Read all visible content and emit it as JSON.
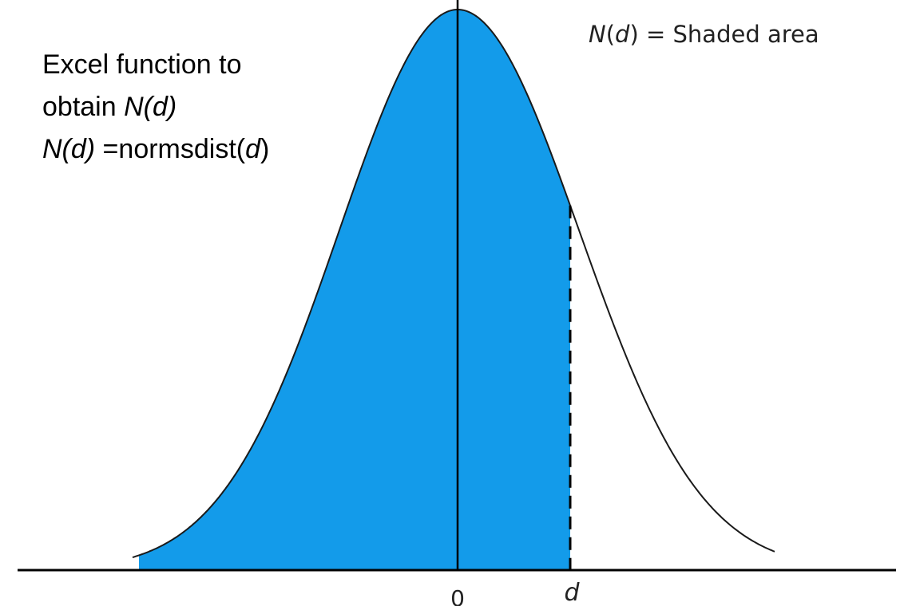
{
  "formula_note": {
    "line1": "Excel function to",
    "line2_prefix": "obtain ",
    "line2_var": "N(d)",
    "line3_var": "N(d)",
    "line3_eq": " =normsdist(",
    "line3_arg": "d",
    "line3_close": ")"
  },
  "legend": {
    "lhs_n": "N",
    "lhs_open": "(",
    "lhs_d": "d",
    "lhs_close": ")",
    "rest": " = Shaded area"
  },
  "axis": {
    "zero_label": "0",
    "d_label": "d"
  },
  "curve": {
    "distribution": "standard normal",
    "shaded_region": "left of d"
  },
  "colors": {
    "shade": "#139bea",
    "line": "#000000",
    "curve": "#1a1a1a",
    "text": "#000000",
    "legend_text": "#222222"
  }
}
